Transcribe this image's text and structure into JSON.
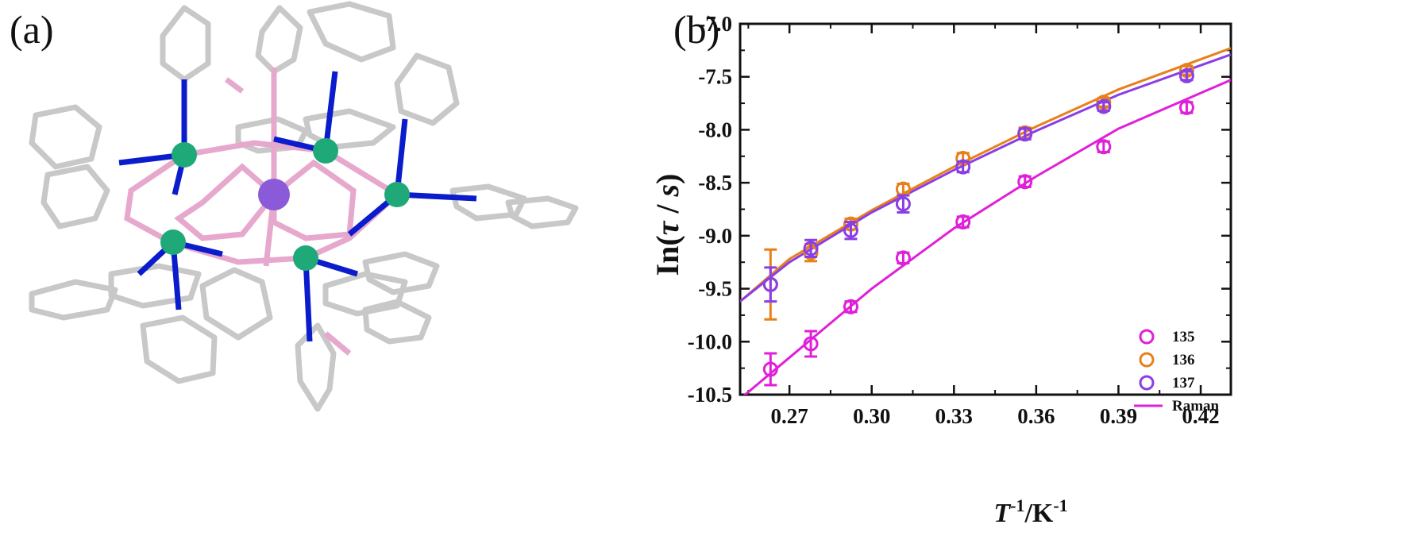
{
  "panels": {
    "a_label": "(a)",
    "b_label": "(b)"
  },
  "molecule": {
    "atom_colors": {
      "bond_gray": "#c8c8c8",
      "nitrogen": "#0a1ccc",
      "metal_green": "#1fa878",
      "central_purple": "#8a5ad8",
      "pink": "#e6a8cc"
    }
  },
  "chart_data": {
    "type": "scatter",
    "title": "",
    "xlabel_main": "T",
    "xlabel_sup1": "-1",
    "xlabel_mid": "/K",
    "xlabel_sup2": "-1",
    "ylabel_pre": "In(",
    "ylabel_tau": "τ",
    "ylabel_mid": " / ",
    "ylabel_s": "s",
    "ylabel_post": ")",
    "xlim": [
      0.252,
      0.431
    ],
    "ylim": [
      -10.5,
      -7.0
    ],
    "xticks": [
      0.27,
      0.3,
      0.33,
      0.36,
      0.39,
      0.42
    ],
    "xtick_labels": [
      "0.27",
      "0.30",
      "0.33",
      "0.36",
      "0.39",
      "0.42"
    ],
    "yticks": [
      -7.0,
      -7.5,
      -8.0,
      -8.5,
      -9.0,
      -9.5,
      -10.0,
      -10.5
    ],
    "ytick_labels": [
      "-7.0",
      "-7.5",
      "-8.0",
      "-8.5",
      "-9.0",
      "-9.5",
      "-10.0",
      "-10.5"
    ],
    "legend_position": "bottom-right",
    "grid": false,
    "series": [
      {
        "name": "135",
        "color": "#e020d8",
        "x": [
          0.2631,
          0.2778,
          0.2924,
          0.3115,
          0.3333,
          0.3559,
          0.3846,
          0.4149
        ],
        "y": [
          -10.26,
          -10.02,
          -9.67,
          -9.21,
          -8.87,
          -8.49,
          -8.16,
          -7.79
        ],
        "err": [
          0.15,
          0.12,
          0.05,
          0.05,
          0.05,
          0.05,
          0.05,
          0.05
        ]
      },
      {
        "name": "136",
        "color": "#e8801a",
        "x": [
          0.2631,
          0.2778,
          0.2924,
          0.3115,
          0.3333,
          0.3559,
          0.3846,
          0.4149
        ],
        "y": [
          -9.46,
          -9.16,
          -8.89,
          -8.56,
          -8.27,
          -8.03,
          -7.74,
          -7.44
        ],
        "err": [
          0.33,
          0.08,
          0.05,
          0.05,
          0.05,
          0.05,
          0.04,
          0.04
        ]
      },
      {
        "name": "137",
        "color": "#8a3ee6",
        "x": [
          0.2631,
          0.2778,
          0.2924,
          0.3115,
          0.3333,
          0.3559,
          0.3846,
          0.4149
        ],
        "y": [
          -9.46,
          -9.12,
          -8.95,
          -8.7,
          -8.35,
          -8.04,
          -7.78,
          -7.49
        ],
        "err": [
          0.16,
          0.08,
          0.08,
          0.08,
          0.05,
          0.05,
          0.04,
          0.04
        ]
      }
    ],
    "fits": [
      {
        "series": "135",
        "color": "#e020d8",
        "x": [
          0.252,
          0.27,
          0.3,
          0.33,
          0.36,
          0.39,
          0.431
        ],
        "y": [
          -10.54,
          -10.15,
          -9.5,
          -8.93,
          -8.44,
          -7.99,
          -7.53
        ]
      },
      {
        "series": "136",
        "color": "#e8801a",
        "x": [
          0.252,
          0.27,
          0.3,
          0.33,
          0.36,
          0.39,
          0.431
        ],
        "y": [
          -9.62,
          -9.22,
          -8.76,
          -8.35,
          -7.97,
          -7.62,
          -7.23
        ]
      },
      {
        "series": "137",
        "color": "#8a3ee6",
        "x": [
          0.252,
          0.27,
          0.3,
          0.33,
          0.36,
          0.39,
          0.431
        ],
        "y": [
          -9.62,
          -9.25,
          -8.78,
          -8.38,
          -8.01,
          -7.67,
          -7.29
        ]
      }
    ],
    "legend": [
      {
        "label": "135",
        "color": "#e020d8",
        "kind": "marker"
      },
      {
        "label": "136",
        "color": "#e8801a",
        "kind": "marker"
      },
      {
        "label": "137",
        "color": "#8a3ee6",
        "kind": "marker"
      },
      {
        "label": "Raman",
        "color": "#e020d8",
        "kind": "line"
      }
    ]
  }
}
